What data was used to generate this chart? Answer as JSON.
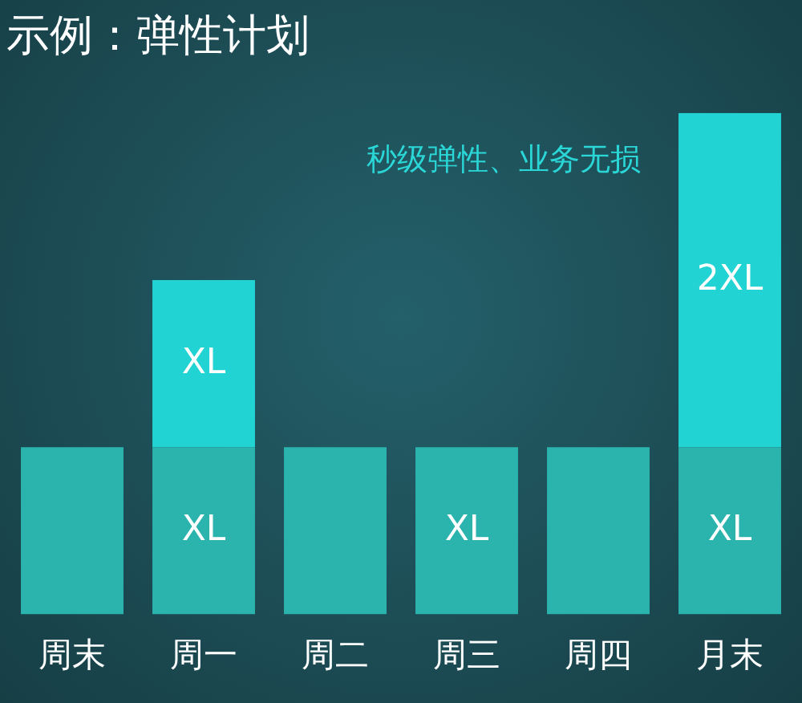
{
  "chart_data": {
    "type": "bar",
    "title": "示例：弹性计划",
    "annotations": [
      "秒级弹性、业务无损"
    ],
    "categories": [
      "周末",
      "周一",
      "周二",
      "周三",
      "周四",
      "月末"
    ],
    "stacked": true,
    "tick_labels": "x",
    "series": [
      {
        "color": "#2bb3ae",
        "values": [
          1,
          1,
          1,
          1,
          1,
          1
        ],
        "value_labels": [
          null,
          "XL",
          null,
          "XL",
          null,
          "XL"
        ]
      },
      {
        "color": "#22d3d3",
        "values": [
          null,
          1,
          null,
          null,
          null,
          2
        ],
        "value_labels": [
          null,
          "XL",
          null,
          null,
          null,
          "2XL"
        ]
      }
    ]
  }
}
